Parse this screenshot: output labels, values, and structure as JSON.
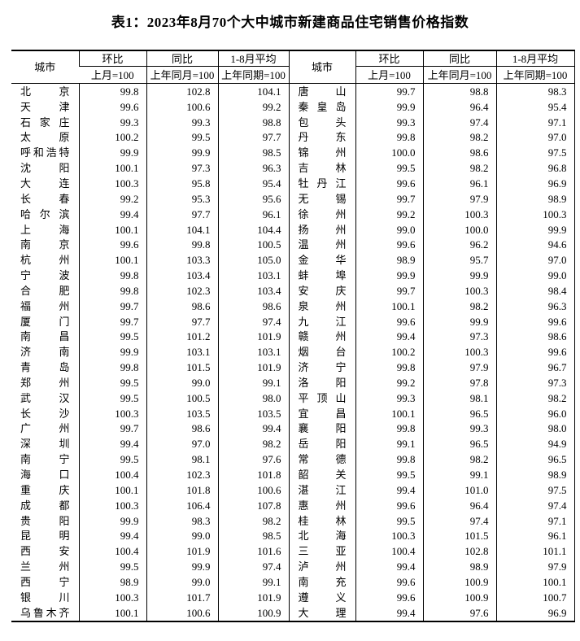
{
  "title": "表1：2023年8月70个大中城市新建商品住宅销售价格指数",
  "table": {
    "header": {
      "city": "城市",
      "mom": "环比",
      "yoy": "同比",
      "avg": "1-8月平均",
      "mom_base": "上月=100",
      "yoy_base": "上年同月=100",
      "avg_base": "上年同期=100"
    },
    "rows": [
      {
        "l": [
          "北京",
          "99.8",
          "102.8",
          "104.1"
        ],
        "r": [
          "唐山",
          "99.7",
          "98.8",
          "98.3"
        ]
      },
      {
        "l": [
          "天津",
          "99.6",
          "100.6",
          "99.2"
        ],
        "r": [
          "秦皇岛",
          "99.9",
          "96.4",
          "95.4"
        ]
      },
      {
        "l": [
          "石家庄",
          "99.3",
          "99.3",
          "98.8"
        ],
        "r": [
          "包头",
          "99.3",
          "97.4",
          "97.1"
        ]
      },
      {
        "l": [
          "太原",
          "100.2",
          "99.5",
          "97.7"
        ],
        "r": [
          "丹东",
          "99.8",
          "98.2",
          "97.0"
        ]
      },
      {
        "l": [
          "呼和浩特",
          "99.9",
          "99.9",
          "98.5"
        ],
        "r": [
          "锦州",
          "100.0",
          "98.6",
          "97.5"
        ]
      },
      {
        "l": [
          "沈阳",
          "100.1",
          "97.3",
          "96.3"
        ],
        "r": [
          "吉林",
          "99.5",
          "98.2",
          "96.8"
        ]
      },
      {
        "l": [
          "大连",
          "100.3",
          "95.8",
          "95.4"
        ],
        "r": [
          "牡丹江",
          "99.6",
          "96.1",
          "96.9"
        ]
      },
      {
        "l": [
          "长春",
          "99.2",
          "95.3",
          "95.6"
        ],
        "r": [
          "无锡",
          "99.7",
          "97.9",
          "98.9"
        ]
      },
      {
        "l": [
          "哈尔滨",
          "99.4",
          "97.7",
          "96.1"
        ],
        "r": [
          "徐州",
          "99.2",
          "100.3",
          "100.3"
        ]
      },
      {
        "l": [
          "上海",
          "100.1",
          "104.1",
          "104.4"
        ],
        "r": [
          "扬州",
          "99.0",
          "100.0",
          "99.9"
        ]
      },
      {
        "l": [
          "南京",
          "99.6",
          "99.8",
          "100.5"
        ],
        "r": [
          "温州",
          "99.6",
          "96.2",
          "94.6"
        ]
      },
      {
        "l": [
          "杭州",
          "100.1",
          "103.3",
          "105.0"
        ],
        "r": [
          "金华",
          "98.9",
          "95.7",
          "97.0"
        ]
      },
      {
        "l": [
          "宁波",
          "99.8",
          "103.4",
          "103.1"
        ],
        "r": [
          "蚌埠",
          "99.9",
          "99.9",
          "99.0"
        ]
      },
      {
        "l": [
          "合肥",
          "99.8",
          "102.3",
          "103.4"
        ],
        "r": [
          "安庆",
          "99.7",
          "100.3",
          "98.4"
        ]
      },
      {
        "l": [
          "福州",
          "99.7",
          "98.6",
          "98.6"
        ],
        "r": [
          "泉州",
          "100.1",
          "98.2",
          "96.3"
        ]
      },
      {
        "l": [
          "厦门",
          "99.7",
          "97.7",
          "97.4"
        ],
        "r": [
          "九江",
          "99.6",
          "99.9",
          "99.6"
        ]
      },
      {
        "l": [
          "南昌",
          "99.5",
          "101.2",
          "101.9"
        ],
        "r": [
          "赣州",
          "99.4",
          "97.3",
          "98.6"
        ]
      },
      {
        "l": [
          "济南",
          "99.9",
          "103.1",
          "103.1"
        ],
        "r": [
          "烟台",
          "100.2",
          "100.3",
          "99.6"
        ]
      },
      {
        "l": [
          "青岛",
          "99.8",
          "101.5",
          "101.9"
        ],
        "r": [
          "济宁",
          "99.8",
          "97.9",
          "96.7"
        ]
      },
      {
        "l": [
          "郑州",
          "99.5",
          "99.0",
          "99.1"
        ],
        "r": [
          "洛阳",
          "99.2",
          "97.8",
          "97.3"
        ]
      },
      {
        "l": [
          "武汉",
          "99.5",
          "100.5",
          "98.0"
        ],
        "r": [
          "平顶山",
          "99.3",
          "98.1",
          "98.2"
        ]
      },
      {
        "l": [
          "长沙",
          "100.3",
          "103.5",
          "103.5"
        ],
        "r": [
          "宜昌",
          "100.1",
          "96.5",
          "96.0"
        ]
      },
      {
        "l": [
          "广州",
          "99.7",
          "98.6",
          "99.4"
        ],
        "r": [
          "襄阳",
          "99.8",
          "99.3",
          "98.0"
        ]
      },
      {
        "l": [
          "深圳",
          "99.4",
          "97.0",
          "98.2"
        ],
        "r": [
          "岳阳",
          "99.1",
          "96.5",
          "94.9"
        ]
      },
      {
        "l": [
          "南宁",
          "99.5",
          "98.1",
          "97.6"
        ],
        "r": [
          "常德",
          "99.8",
          "98.2",
          "96.5"
        ]
      },
      {
        "l": [
          "海口",
          "100.4",
          "102.3",
          "101.8"
        ],
        "r": [
          "韶关",
          "99.5",
          "99.1",
          "98.9"
        ]
      },
      {
        "l": [
          "重庆",
          "100.1",
          "101.8",
          "100.6"
        ],
        "r": [
          "湛江",
          "99.4",
          "101.0",
          "97.5"
        ]
      },
      {
        "l": [
          "成都",
          "100.3",
          "106.4",
          "107.8"
        ],
        "r": [
          "惠州",
          "99.6",
          "96.4",
          "97.4"
        ]
      },
      {
        "l": [
          "贵阳",
          "99.9",
          "98.3",
          "98.2"
        ],
        "r": [
          "桂林",
          "99.5",
          "97.4",
          "97.1"
        ]
      },
      {
        "l": [
          "昆明",
          "99.4",
          "99.0",
          "98.5"
        ],
        "r": [
          "北海",
          "100.3",
          "101.5",
          "96.1"
        ]
      },
      {
        "l": [
          "西安",
          "100.4",
          "101.9",
          "101.6"
        ],
        "r": [
          "三亚",
          "100.4",
          "102.8",
          "101.1"
        ]
      },
      {
        "l": [
          "兰州",
          "99.5",
          "99.9",
          "97.4"
        ],
        "r": [
          "泸州",
          "99.4",
          "98.9",
          "97.9"
        ]
      },
      {
        "l": [
          "西宁",
          "98.9",
          "99.0",
          "99.1"
        ],
        "r": [
          "南充",
          "99.6",
          "100.9",
          "100.1"
        ]
      },
      {
        "l": [
          "银川",
          "100.3",
          "101.7",
          "101.9"
        ],
        "r": [
          "遵义",
          "99.6",
          "100.9",
          "100.7"
        ]
      },
      {
        "l": [
          "乌鲁木齐",
          "100.1",
          "100.6",
          "100.9"
        ],
        "r": [
          "大理",
          "99.4",
          "97.6",
          "96.9"
        ]
      }
    ]
  }
}
